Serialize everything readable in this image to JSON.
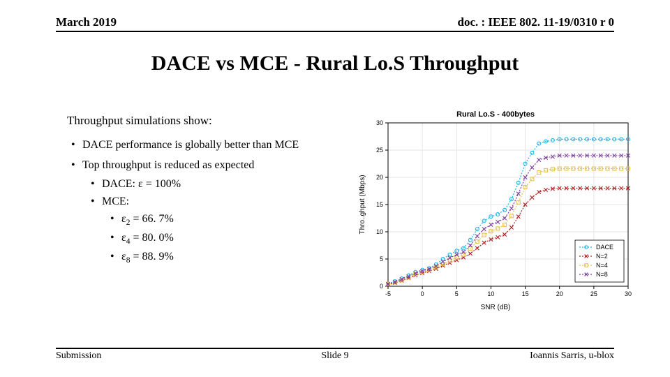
{
  "header": {
    "left": "March 2019",
    "right": "doc. : IEEE 802. 11-19/0310 r 0"
  },
  "title": "DACE vs MCE - Rural Lo.S Throughput",
  "lead": "Throughput simulations show:",
  "bullets": {
    "b1": "DACE performance is globally better than MCE",
    "b2": "Top throughput is reduced as expected",
    "b2a": "DACE: ε = 100%",
    "b2b": "MCE:",
    "b2b1_pre": "ε",
    "b2b1_sub": "2",
    "b2b1_post": " = 66. 7%",
    "b2b2_pre": "ε",
    "b2b2_sub": "4",
    "b2b2_post": " = 80. 0%",
    "b2b3_pre": "ε",
    "b2b3_sub": "8",
    "b2b3_post": " = 88. 9%"
  },
  "footer": {
    "left": "Submission",
    "center": "Slide 9",
    "right": "Ioannis Sarris, u-blox"
  },
  "chart": {
    "type": "line",
    "title": "Rural Lo.S - 400bytes",
    "xlabel": "SNR (dB)",
    "ylabel": "Throughput (Mbps)",
    "ylabel_visible": "Thro..ghput (Mbps)",
    "xlim": [
      -5,
      30
    ],
    "ylim": [
      0,
      30
    ],
    "xtick_step": 5,
    "ytick_step": 5,
    "grid_color": "#e5e5e5",
    "axis_color": "#000000",
    "background_color": "#ffffff",
    "label_fontsize": 10,
    "tick_fontsize": 9,
    "title_fontsize": 11,
    "linewidth": 1.2,
    "marker_size": 4.5,
    "legend": {
      "position": "bottom-right",
      "border_color": "#000000",
      "bg_color": "#ffffff"
    },
    "series": [
      {
        "name": "DACE",
        "color": "#1bb6e6",
        "marker": "circle",
        "dash": "2,2",
        "x": [
          -5,
          -4,
          -3,
          -2,
          -1,
          0,
          1,
          2,
          3,
          4,
          5,
          6,
          7,
          8,
          9,
          10,
          11,
          12,
          13,
          14,
          15,
          16,
          17,
          18,
          19,
          20,
          21,
          22,
          23,
          24,
          25,
          26,
          27,
          28,
          29,
          30
        ],
        "y": [
          0.5,
          0.9,
          1.4,
          2.0,
          2.6,
          3.0,
          3.3,
          4.0,
          5.0,
          5.8,
          6.5,
          7.0,
          8.5,
          10.5,
          12.0,
          12.8,
          13.2,
          14.0,
          16.0,
          19.0,
          22.5,
          24.5,
          26.2,
          26.6,
          26.8,
          27.0,
          27.0,
          27.0,
          27.0,
          27.0,
          27.0,
          27.0,
          27.0,
          27.0,
          27.0,
          27.0
        ]
      },
      {
        "name": "N=2",
        "color": "#b22222",
        "marker": "x",
        "dash": "2,2",
        "x": [
          -5,
          -4,
          -3,
          -2,
          -1,
          0,
          1,
          2,
          3,
          4,
          5,
          6,
          7,
          8,
          9,
          10,
          11,
          12,
          13,
          14,
          15,
          16,
          17,
          18,
          19,
          20,
          21,
          22,
          23,
          24,
          25,
          26,
          27,
          28,
          29,
          30
        ],
        "y": [
          0.3,
          0.6,
          1.0,
          1.5,
          2.0,
          2.4,
          2.8,
          3.2,
          3.8,
          4.3,
          4.8,
          5.3,
          6.0,
          7.0,
          8.0,
          8.6,
          9.0,
          9.5,
          10.8,
          12.8,
          15.0,
          16.3,
          17.3,
          17.7,
          17.9,
          18.0,
          18.0,
          18.0,
          18.0,
          18.0,
          18.0,
          18.0,
          18.0,
          18.0,
          18.0,
          18.0
        ]
      },
      {
        "name": "N=4",
        "color": "#e6c24d",
        "marker": "square",
        "dash": "2,2",
        "x": [
          -5,
          -4,
          -3,
          -2,
          -1,
          0,
          1,
          2,
          3,
          4,
          5,
          6,
          7,
          8,
          9,
          10,
          11,
          12,
          13,
          14,
          15,
          16,
          17,
          18,
          19,
          20,
          21,
          22,
          23,
          24,
          25,
          26,
          27,
          28,
          29,
          30
        ],
        "y": [
          0.4,
          0.7,
          1.1,
          1.6,
          2.2,
          2.6,
          3.0,
          3.5,
          4.1,
          4.7,
          5.3,
          5.8,
          6.9,
          8.2,
          9.4,
          10.1,
          10.6,
          11.3,
          12.9,
          15.4,
          18.2,
          19.7,
          20.9,
          21.3,
          21.5,
          21.6,
          21.6,
          21.6,
          21.6,
          21.6,
          21.6,
          21.6,
          21.6,
          21.6,
          21.6,
          21.6
        ]
      },
      {
        "name": "N=8",
        "color": "#7e3fa0",
        "marker": "x",
        "dash": "2,2",
        "x": [
          -5,
          -4,
          -3,
          -2,
          -1,
          0,
          1,
          2,
          3,
          4,
          5,
          6,
          7,
          8,
          9,
          10,
          11,
          12,
          13,
          14,
          15,
          16,
          17,
          18,
          19,
          20,
          21,
          22,
          23,
          24,
          25,
          26,
          27,
          28,
          29,
          30
        ],
        "y": [
          0.4,
          0.8,
          1.3,
          1.8,
          2.4,
          2.8,
          3.2,
          3.7,
          4.5,
          5.2,
          5.8,
          6.3,
          7.5,
          9.2,
          10.5,
          11.3,
          11.8,
          12.5,
          14.3,
          17.0,
          20.0,
          21.8,
          23.2,
          23.6,
          23.8,
          24.0,
          24.0,
          24.0,
          24.0,
          24.0,
          24.0,
          24.0,
          24.0,
          24.0,
          24.0,
          24.0
        ]
      }
    ]
  }
}
